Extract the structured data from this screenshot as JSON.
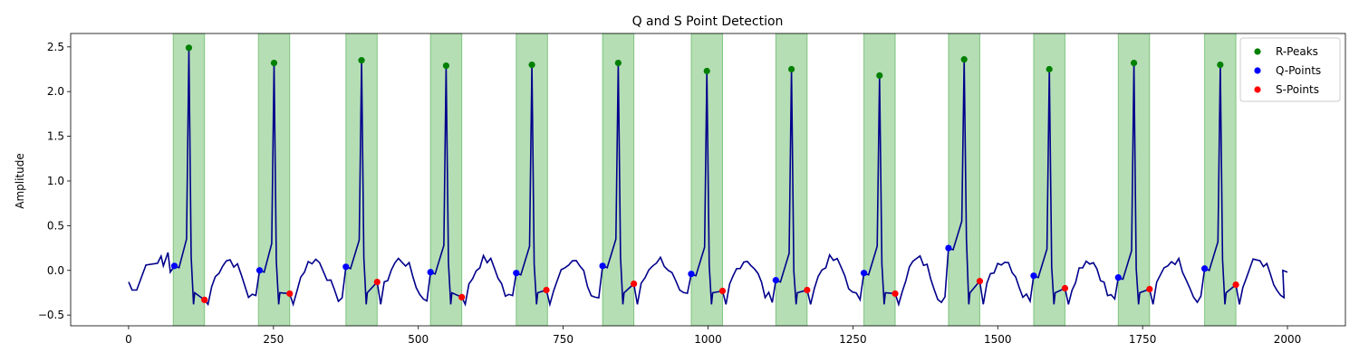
{
  "chart_data": {
    "type": "line",
    "title": "Q and S Point Detection",
    "xlabel": "",
    "ylabel": "Amplitude",
    "xlim": [
      -100,
      2100
    ],
    "ylim": [
      -0.62,
      2.65
    ],
    "xticks": [
      0,
      250,
      500,
      750,
      1000,
      1250,
      1500,
      1750,
      2000
    ],
    "xtick_labels": [
      "0",
      "250",
      "500",
      "750",
      "1000",
      "1250",
      "1500",
      "1750",
      "2000"
    ],
    "yticks": [
      -0.5,
      0.0,
      0.5,
      1.0,
      1.5,
      2.0,
      2.5
    ],
    "ytick_labels": [
      "−0.5",
      "0.0",
      "0.5",
      "1.0",
      "1.5",
      "2.0",
      "2.5"
    ],
    "grid": false,
    "legend_position": "top-right",
    "colors": {
      "signal": "#00008b",
      "r_peaks": "#008000",
      "q_points": "#0000ff",
      "s_points": "#ff0000",
      "highlight": "#2ca02c"
    },
    "qrs_regions": [
      [
        77,
        131
      ],
      [
        224,
        278
      ],
      [
        375,
        429
      ],
      [
        521,
        575
      ],
      [
        669,
        723
      ],
      [
        818,
        872
      ],
      [
        971,
        1025
      ],
      [
        1117,
        1171
      ],
      [
        1269,
        1323
      ],
      [
        1415,
        1469
      ],
      [
        1562,
        1616
      ],
      [
        1708,
        1762
      ],
      [
        1857,
        1911
      ]
    ],
    "series": [
      {
        "name": "R-Peaks",
        "marker": "circle",
        "color": "#008000",
        "x": [
          104,
          251,
          402,
          548,
          696,
          845,
          998,
          1144,
          1296,
          1442,
          1589,
          1735,
          1884
        ],
        "y": [
          2.49,
          2.32,
          2.35,
          2.29,
          2.3,
          2.32,
          2.23,
          2.25,
          2.18,
          2.36,
          2.25,
          2.32,
          2.3
        ]
      },
      {
        "name": "Q-Points",
        "marker": "circle",
        "color": "#0000ff",
        "x": [
          79,
          226,
          375,
          521,
          669,
          818,
          971,
          1117,
          1269,
          1415,
          1562,
          1708,
          1857
        ],
        "y": [
          0.05,
          0.0,
          0.04,
          -0.02,
          -0.03,
          0.05,
          -0.04,
          -0.11,
          -0.03,
          0.25,
          -0.06,
          -0.08,
          0.02
        ]
      },
      {
        "name": "S-Points",
        "marker": "circle",
        "color": "#ff0000",
        "x": [
          131,
          278,
          429,
          575,
          721,
          872,
          1025,
          1171,
          1323,
          1469,
          1616,
          1762,
          1911
        ],
        "y": [
          -0.33,
          -0.26,
          -0.13,
          -0.3,
          -0.22,
          -0.15,
          -0.23,
          -0.22,
          -0.26,
          -0.12,
          -0.2,
          -0.21,
          -0.16
        ]
      }
    ]
  }
}
